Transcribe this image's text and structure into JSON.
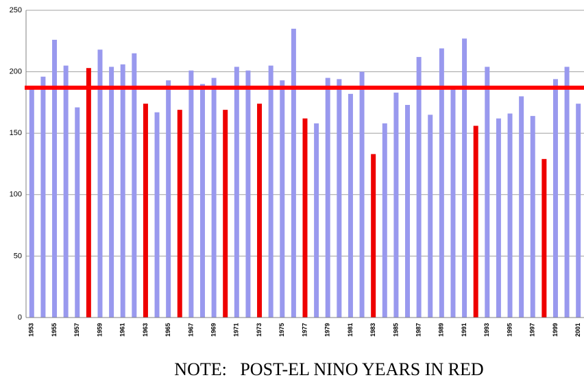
{
  "chart_data": {
    "type": "bar",
    "categories": [
      "1953",
      null,
      "1955",
      null,
      "1957",
      null,
      "1959",
      null,
      "1961",
      null,
      "1963",
      null,
      "1965",
      null,
      "1967",
      null,
      "1969",
      null,
      "1971",
      null,
      "1973",
      null,
      "1975",
      null,
      "1977",
      null,
      "1979",
      null,
      "1981",
      null,
      "1983",
      null,
      "1985",
      null,
      "1987",
      null,
      "1989",
      null,
      "1991",
      null,
      "1993",
      null,
      "1995",
      null,
      "1997",
      null,
      "1999",
      null,
      "2001"
    ],
    "values": [
      187,
      196,
      226,
      205,
      171,
      203,
      218,
      204,
      206,
      215,
      174,
      167,
      193,
      169,
      201,
      190,
      195,
      169,
      204,
      201,
      174,
      205,
      193,
      235,
      162,
      158,
      195,
      194,
      182,
      200,
      133,
      158,
      183,
      173,
      212,
      165,
      219,
      188,
      227,
      156,
      204,
      162,
      166,
      180,
      164,
      129,
      194,
      204,
      174
    ],
    "colors": [
      "#9999ee",
      "#9999ee",
      "#9999ee",
      "#9999ee",
      "#9999ee",
      "#ee0000",
      "#9999ee",
      "#9999ee",
      "#9999ee",
      "#9999ee",
      "#ee0000",
      "#9999ee",
      "#9999ee",
      "#ee0000",
      "#9999ee",
      "#9999ee",
      "#9999ee",
      "#ee0000",
      "#9999ee",
      "#9999ee",
      "#ee0000",
      "#9999ee",
      "#9999ee",
      "#9999ee",
      "#ee0000",
      "#9999ee",
      "#9999ee",
      "#9999ee",
      "#9999ee",
      "#9999ee",
      "#ee0000",
      "#9999ee",
      "#9999ee",
      "#9999ee",
      "#9999ee",
      "#9999ee",
      "#9999ee",
      "#9999ee",
      "#9999ee",
      "#ee0000",
      "#9999ee",
      "#9999ee",
      "#9999ee",
      "#9999ee",
      "#9999ee",
      "#ee0000",
      "#9999ee",
      "#9999ee",
      "#9999ee"
    ],
    "ylim": [
      0,
      250
    ],
    "yticks": [
      0,
      50,
      100,
      150,
      200,
      250
    ],
    "grid": true,
    "reference_line": {
      "value": 187,
      "color": "#ff0000"
    },
    "note": "NOTE:   POST-EL NINO YEARS IN RED"
  }
}
